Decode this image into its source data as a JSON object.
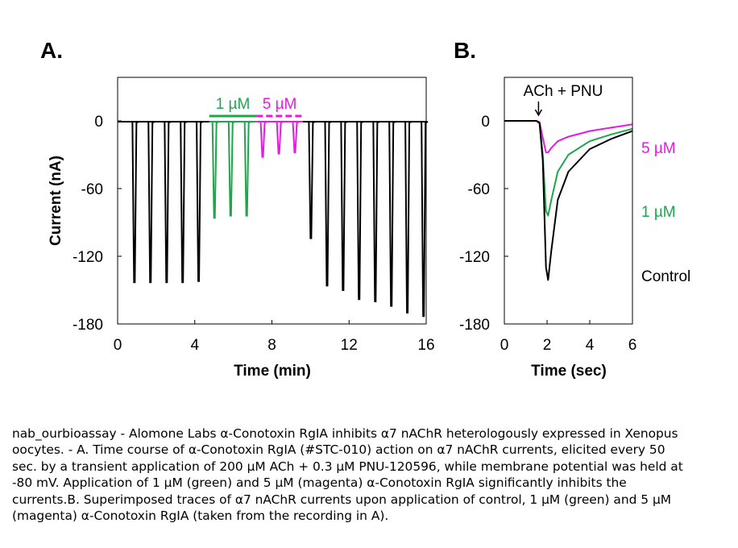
{
  "chart_data": [
    {
      "panel_label": "A.",
      "type": "line",
      "xlabel": "Time (min)",
      "ylabel": "Current (nA)",
      "xlim": [
        0,
        16
      ],
      "ylim": [
        -180,
        40
      ],
      "x_ticks": [
        "0",
        "4",
        "8",
        "12",
        "16"
      ],
      "y_ticks": [
        "0",
        "-60",
        "-120",
        "-180"
      ],
      "application_bars": [
        {
          "label": "1 µM",
          "color": "#1fa54a",
          "style": "solid",
          "x_start": 4.75,
          "x_end": 7.2
        },
        {
          "label": "5 µM",
          "color": "#e619e6",
          "style": "dashed",
          "x_start": 7.2,
          "x_end": 9.6
        }
      ],
      "series": [
        {
          "name": "Control",
          "color": "#000000",
          "x": [
            0.85,
            1.68,
            2.52,
            3.35,
            4.18,
            10.0,
            10.84,
            11.67,
            12.5,
            13.34,
            14.17,
            15.0,
            15.84
          ],
          "y": [
            -143,
            -143,
            -143,
            -143,
            -142,
            -104,
            -146,
            -150,
            -158,
            -160,
            -164,
            -170,
            -173
          ]
        },
        {
          "name": "1 µM",
          "color": "#1fa54a",
          "x": [
            5.0,
            5.84,
            6.67
          ],
          "y": [
            -86,
            -84,
            -84
          ]
        },
        {
          "name": "5 µM",
          "color": "#e619e6",
          "x": [
            7.5,
            8.34,
            9.17
          ],
          "y": [
            -32,
            -29,
            -28
          ]
        }
      ]
    },
    {
      "panel_label": "B.",
      "type": "line",
      "xlabel": "Time (sec)",
      "xlim": [
        0,
        6
      ],
      "ylim": [
        -180,
        40
      ],
      "x_ticks": [
        "0",
        "2",
        "4",
        "6"
      ],
      "y_ticks": [
        "0",
        "-60",
        "-120",
        "-180"
      ],
      "annotation": "ACh + PNU",
      "annotation_x": 1.6,
      "series": [
        {
          "name": "Control",
          "color": "#000000",
          "label": "Control",
          "x": [
            0,
            1.5,
            1.65,
            1.8,
            1.95,
            2.05,
            2.2,
            2.5,
            3,
            4,
            5,
            6
          ],
          "y": [
            0,
            0,
            -2,
            -35,
            -130,
            -141,
            -115,
            -70,
            -45,
            -25,
            -16,
            -9
          ]
        },
        {
          "name": "1 µM",
          "color": "#1fa54a",
          "label": "1 µM",
          "x": [
            0,
            1.5,
            1.65,
            1.8,
            1.95,
            2.05,
            2.2,
            2.5,
            3,
            4,
            5,
            6
          ],
          "y": [
            0,
            0,
            -2,
            -30,
            -80,
            -84,
            -70,
            -45,
            -30,
            -18,
            -12,
            -7
          ]
        },
        {
          "name": "5 µM",
          "color": "#e619e6",
          "label": "5 µM",
          "x": [
            0,
            1.5,
            1.65,
            1.8,
            1.95,
            2.05,
            2.2,
            2.5,
            3,
            4,
            5,
            6
          ],
          "y": [
            0,
            0,
            -1,
            -15,
            -28,
            -28,
            -24,
            -18,
            -14,
            -9,
            -6,
            -3
          ]
        }
      ]
    }
  ],
  "caption": "nab_ourbioassay - Alomone Labs α-Conotoxin RgIA inhibits α7 nAChR heterologously expressed in Xenopus oocytes. - A. Time course of α-Conotoxin RgIA (#STC-010) action on α7 nAChR currents, elicited every 50 sec. by a transient application of 200 µM ACh + 0.3 µM PNU-120596, while membrane potential was held at -80 mV. Application of 1 µM (green) and 5 µM (magenta) α-Conotoxin RgIA significantly inhibits the currents.B. Superimposed traces of α7 nAChR currents upon application of control, 1 µM (green) and 5 µM (magenta) α-Conotoxin RgIA (taken from the recording in A)."
}
